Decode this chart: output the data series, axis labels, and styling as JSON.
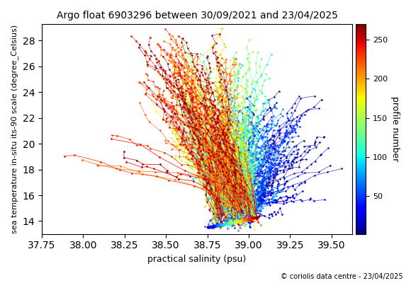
{
  "title": "Argo float 6903296 between 30/09/2021 and 23/04/2025",
  "xlabel": "practical salinity (psu)",
  "ylabel": "sea temperature in-situ its-90 scale (degree_Celsius)",
  "colorbar_label": "profile number",
  "copyright": "© coriolis data centre - 23/04/2025",
  "xlim": [
    37.75,
    39.625
  ],
  "ylim": [
    13.0,
    29.25
  ],
  "xticks": [
    37.75,
    38.0,
    38.25,
    38.5,
    38.75,
    39.0,
    39.25,
    39.5
  ],
  "yticks": [
    14,
    16,
    18,
    20,
    22,
    24,
    26,
    28
  ],
  "cmap": "jet",
  "n_profiles": 270,
  "vmin": 1,
  "vmax": 270,
  "colorbar_ticks": [
    50,
    100,
    150,
    200,
    250
  ],
  "seed": 42
}
